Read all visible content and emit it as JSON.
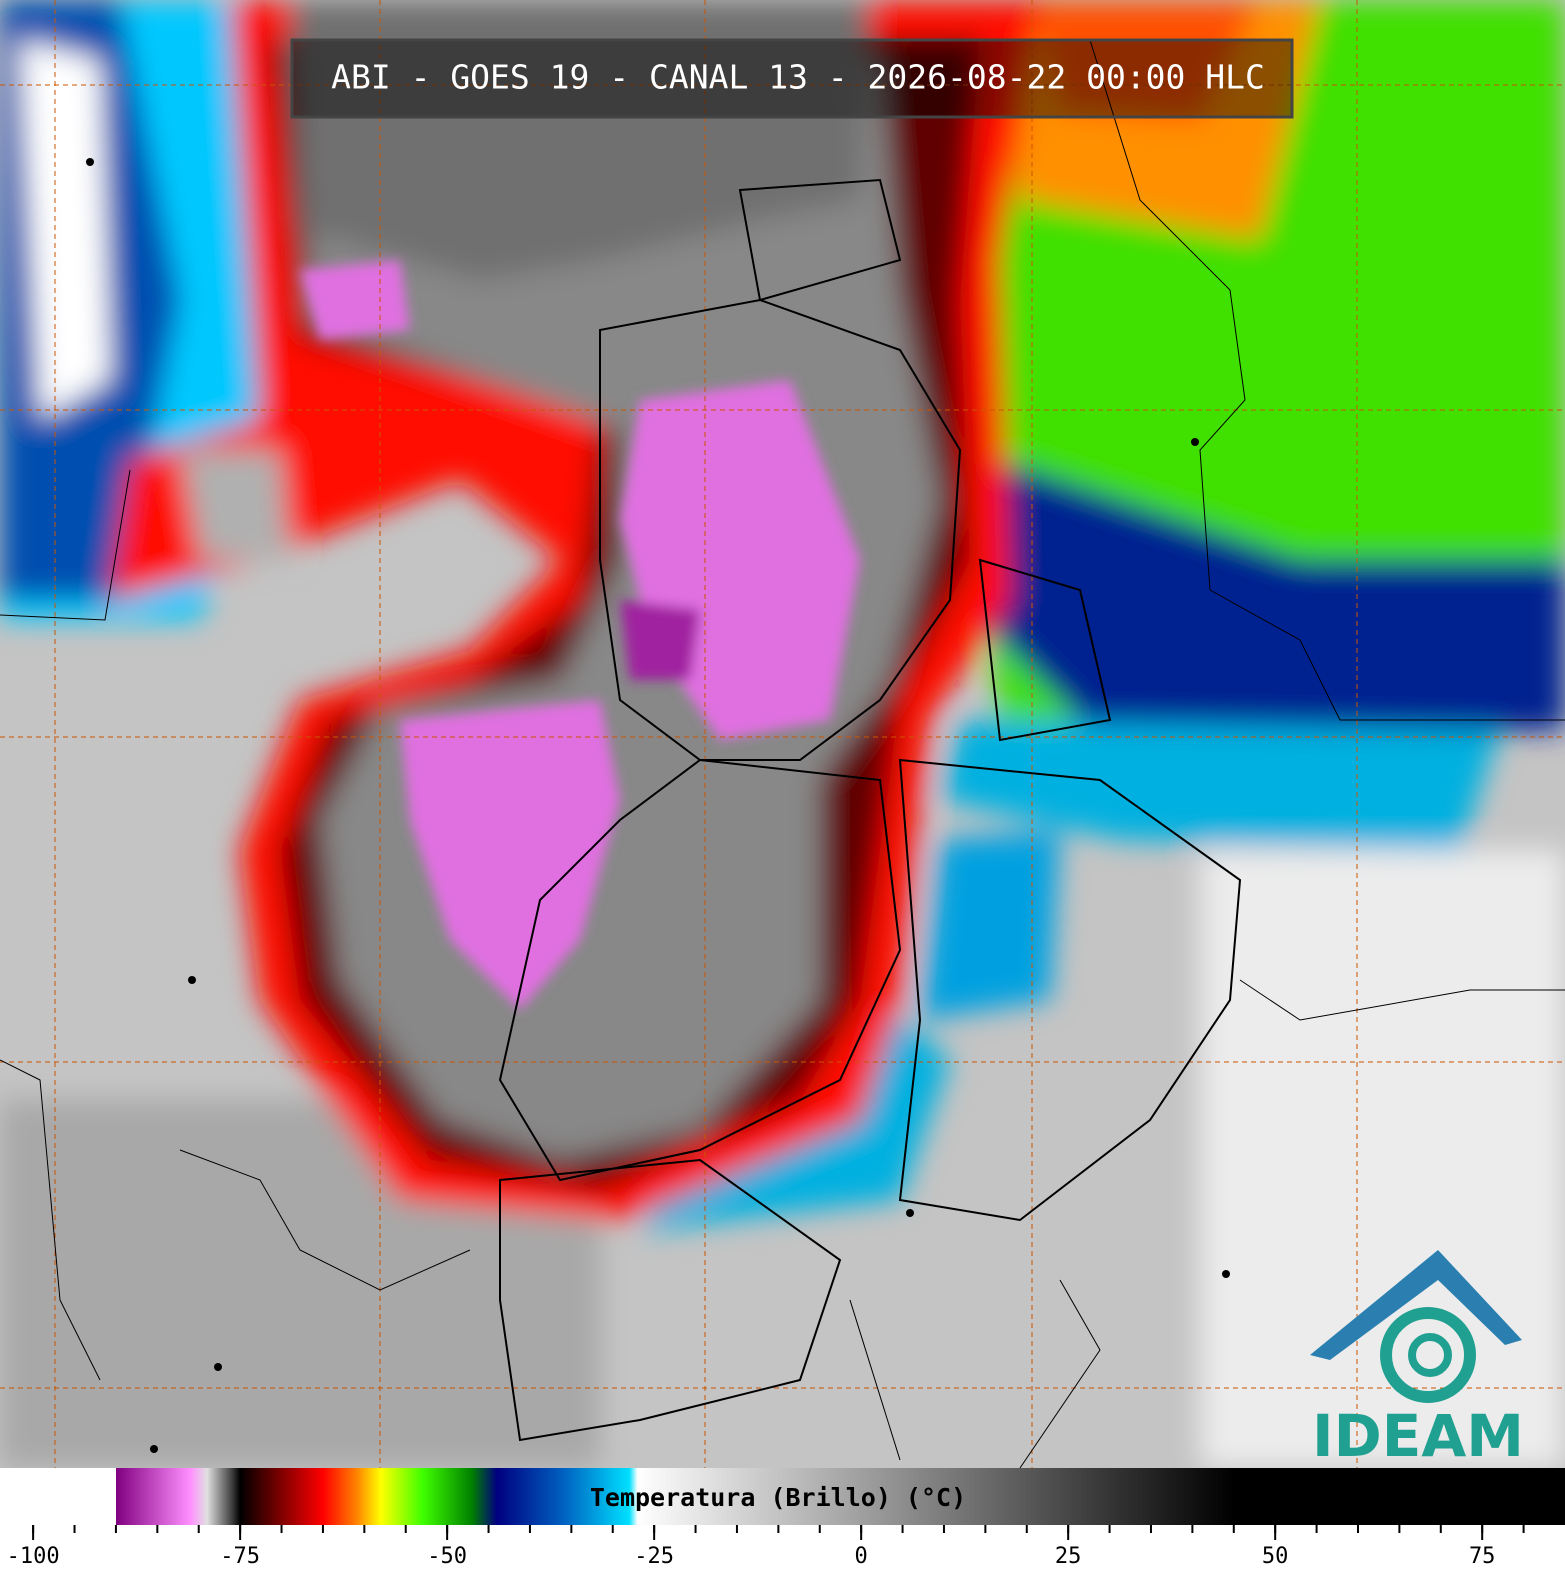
{
  "title": "ABI - GOES 19 - CANAL 13 - 2026-08-22 00:00 HLC",
  "logo": "IDEAM",
  "colorbar": {
    "label": "Temperatura (Brillo) (°C)",
    "range": [
      -104,
      85
    ],
    "ticks": [
      -100,
      -75,
      -50,
      -25,
      0,
      25,
      50,
      75
    ],
    "minor_ticks": [
      -100,
      -95,
      -90,
      -85,
      -80,
      -75,
      -70,
      -65,
      -60,
      -55,
      -50,
      -45,
      -40,
      -35,
      -30,
      -25,
      -20,
      -15,
      -10,
      -5,
      0,
      5,
      10,
      15,
      20,
      25,
      30,
      35,
      40,
      45,
      50,
      55,
      60,
      65,
      70,
      75,
      80
    ],
    "colormap": [
      {
        "value": -104,
        "color": "#ffffff"
      },
      {
        "value": -90,
        "color": "#ffffff"
      },
      {
        "value": -90,
        "color": "#800080"
      },
      {
        "value": -81,
        "color": "#ff90ff"
      },
      {
        "value": -79,
        "color": "#e0e0e0"
      },
      {
        "value": -76,
        "color": "#404040"
      },
      {
        "value": -75,
        "color": "#000000"
      },
      {
        "value": -70,
        "color": "#800000"
      },
      {
        "value": -65,
        "color": "#ff0000"
      },
      {
        "value": -61,
        "color": "#ff8000"
      },
      {
        "value": -58,
        "color": "#ffff00"
      },
      {
        "value": -53,
        "color": "#40ff00"
      },
      {
        "value": -47,
        "color": "#008000"
      },
      {
        "value": -44,
        "color": "#000080"
      },
      {
        "value": -36,
        "color": "#0060c0"
      },
      {
        "value": -28,
        "color": "#00e0ff"
      },
      {
        "value": -27,
        "color": "#ffffff"
      },
      {
        "value": 45,
        "color": "#000000"
      },
      {
        "value": 85,
        "color": "#000000"
      }
    ]
  }
}
